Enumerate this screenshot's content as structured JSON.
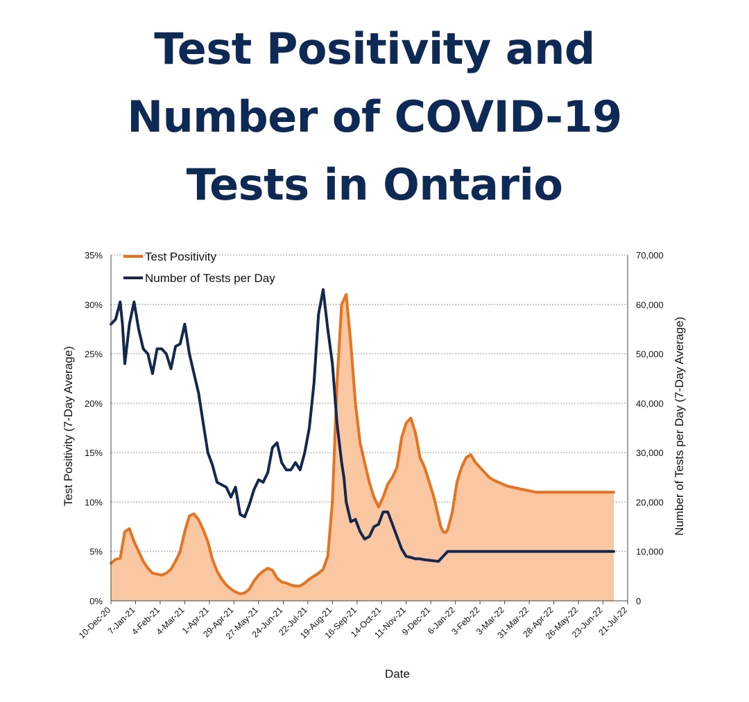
{
  "title_lines": [
    "Test Positivity and",
    "Number of COVID-19",
    "Tests in Ontario"
  ],
  "chart_data": {
    "type": "line",
    "title": "Test Positivity and Number of COVID-19 Tests in Ontario",
    "xlabel": "Date",
    "ylabel_left": "Test Positivity (7-Day Average)",
    "ylabel_right": "Number of Tests per Day (7-Day Average)",
    "ylim_left": [
      0,
      35
    ],
    "ylim_right": [
      0,
      70000
    ],
    "yticks_left": [
      "0%",
      "5%",
      "10%",
      "15%",
      "20%",
      "25%",
      "30%",
      "35%"
    ],
    "yticks_right": [
      "0",
      "10,000",
      "20,000",
      "30,000",
      "40,000",
      "50,000",
      "60,000",
      "70,000"
    ],
    "x_ticks": [
      "10-Dec-20",
      "7-Jan-21",
      "4-Feb-21",
      "4-Mar-21",
      "1-Apr-21",
      "29-Apr-21",
      "27-May-21",
      "24-Jun-21",
      "22-Jul-21",
      "19-Aug-21",
      "16-Sep-21",
      "14-Oct-21",
      "11-Nov-21",
      "9-Dec-21",
      "6-Jan-22",
      "3-Feb-22",
      "3-Mar-22",
      "31-Mar-22",
      "28-Apr-22",
      "26-May-22",
      "23-Jun-22",
      "21-Jul-22"
    ],
    "x_range_days": [
      0,
      224
    ],
    "grid": true,
    "legend_position": "top-left",
    "series": [
      {
        "name": "Test Positivity",
        "axis": "left",
        "unit": "%",
        "color": "#e8731e",
        "fill": "#f9c7a1",
        "x": [
          0,
          2,
          4,
          6,
          8,
          10,
          12,
          14,
          16,
          18,
          20,
          22,
          24,
          26,
          28,
          30,
          32,
          34,
          36,
          38,
          40,
          42,
          44,
          46,
          48,
          50,
          52,
          54,
          56,
          58,
          60,
          62,
          64,
          66,
          68,
          70,
          72,
          74,
          76,
          78,
          80,
          82,
          84,
          86,
          88,
          90,
          92,
          94,
          96,
          98,
          100,
          102,
          104,
          106,
          108,
          110,
          112,
          114,
          116,
          118,
          120,
          122,
          124,
          126,
          128,
          130,
          132,
          134,
          136,
          138,
          140,
          141,
          142,
          143,
          144,
          145,
          146,
          148,
          150,
          152,
          154,
          156,
          158,
          160,
          162,
          164,
          166,
          168,
          170,
          172,
          174,
          176,
          178,
          180,
          182,
          184,
          186,
          188,
          190,
          192,
          194,
          196,
          198,
          200,
          202,
          204,
          206,
          208,
          210,
          212,
          214,
          216,
          217,
          218
        ],
        "values": [
          3.8,
          4.2,
          4.3,
          7.0,
          7.3,
          6.0,
          5.0,
          4.0,
          3.3,
          2.8,
          2.7,
          2.6,
          2.8,
          3.2,
          4.0,
          5.0,
          7.0,
          8.6,
          8.8,
          8.2,
          7.2,
          6.0,
          4.2,
          3.0,
          2.2,
          1.6,
          1.2,
          0.9,
          0.7,
          0.8,
          1.2,
          2.0,
          2.6,
          3.0,
          3.3,
          3.1,
          2.3,
          1.9,
          1.8,
          1.6,
          1.5,
          1.5,
          1.8,
          2.2,
          2.5,
          2.8,
          3.2,
          4.5,
          10.0,
          22.0,
          30.0,
          31.0,
          26.0,
          20.0,
          16.0,
          14.0,
          12.0,
          10.5,
          9.5,
          10.5,
          11.8,
          12.5,
          13.5,
          16.5,
          18.0,
          18.5,
          17.0,
          14.5,
          13.5,
          12.0,
          10.5,
          9.5,
          8.5,
          7.5,
          7.0,
          6.9,
          7.2,
          9.0,
          12.0,
          13.5,
          14.5,
          14.8,
          14.0,
          13.5,
          13.0,
          12.5,
          12.2,
          12.0,
          11.8,
          11.6,
          11.5,
          11.4,
          11.3,
          11.2,
          11.1,
          11.0,
          11.0,
          11.0,
          11.0,
          11.0,
          11.0,
          11.0,
          11.0,
          11.0,
          11.0,
          11.0,
          11.0,
          11.0,
          11.0,
          11.0,
          11.0,
          11.0,
          11.0,
          11.0
        ]
      },
      {
        "name": "Number of Tests per Day",
        "axis": "right",
        "unit": "tests",
        "color": "#13284f",
        "x": [
          0,
          2,
          4,
          5,
          6,
          8,
          10,
          12,
          14,
          16,
          18,
          20,
          22,
          24,
          26,
          28,
          30,
          32,
          34,
          36,
          38,
          40,
          42,
          44,
          46,
          48,
          50,
          52,
          54,
          56,
          58,
          60,
          62,
          64,
          66,
          68,
          70,
          72,
          74,
          76,
          78,
          80,
          82,
          84,
          86,
          88,
          90,
          92,
          94,
          96,
          98,
          100,
          101,
          102,
          104,
          106,
          108,
          110,
          112,
          114,
          116,
          118,
          120,
          122,
          124,
          126,
          128,
          130,
          132,
          134,
          136,
          138,
          140,
          142,
          144,
          146,
          148,
          150,
          152,
          154,
          156,
          158,
          160,
          162,
          164,
          166,
          168,
          170,
          172,
          174,
          176,
          178,
          180,
          182,
          184,
          186,
          188,
          190,
          192,
          194,
          196,
          198,
          200,
          202,
          204,
          206,
          208,
          210,
          212,
          214,
          216,
          218
        ],
        "values": [
          56000,
          57000,
          60500,
          56000,
          48000,
          56000,
          60500,
          55000,
          51000,
          50000,
          46000,
          51000,
          51000,
          50000,
          47000,
          51500,
          52000,
          56000,
          50000,
          46000,
          42000,
          36000,
          30000,
          27500,
          24000,
          23500,
          23000,
          21000,
          23000,
          17500,
          17000,
          19500,
          22500,
          24500,
          24000,
          26000,
          31000,
          32000,
          28000,
          26500,
          26500,
          28000,
          26500,
          30000,
          35000,
          44000,
          58000,
          63000,
          55000,
          48000,
          36000,
          28000,
          25000,
          20000,
          16000,
          16500,
          14000,
          12500,
          13000,
          15000,
          15500,
          18000,
          18000,
          15500,
          13000,
          10500,
          9000,
          8800,
          8500,
          8500,
          8300,
          8200,
          8100,
          8000,
          9000,
          10000,
          10000,
          10000,
          10000,
          10000,
          10000,
          10000,
          10000,
          10000,
          10000,
          10000,
          10000,
          10000,
          10000,
          10000,
          10000,
          10000,
          10000,
          10000,
          10000,
          10000,
          10000,
          10000,
          10000,
          10000,
          10000,
          10000,
          10000,
          10000,
          10000,
          10000,
          10000,
          10000,
          10000,
          10000,
          10000,
          10000
        ]
      }
    ]
  }
}
